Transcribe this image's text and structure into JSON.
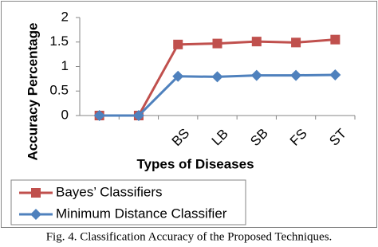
{
  "chart_data": {
    "type": "line",
    "categories": [
      null,
      null,
      "BS",
      "LB",
      "SB",
      "FS",
      "ST"
    ],
    "series": [
      {
        "name": "Bayes’ Classifiers",
        "color": "#c0504d",
        "marker": "square",
        "values": [
          0,
          0,
          1.45,
          1.47,
          1.51,
          1.49,
          1.55
        ]
      },
      {
        "name": "Minimum Distance Classifier",
        "color": "#4f81bd",
        "marker": "diamond",
        "values": [
          0,
          0,
          0.8,
          0.79,
          0.82,
          0.82,
          0.83
        ]
      }
    ],
    "ylim": [
      0,
      2
    ],
    "yticks": [
      0,
      0.5,
      1,
      1.5,
      2
    ],
    "grid": false,
    "xlabel": "Types of Diseases",
    "ylabel": "Accuracy Percentage",
    "caption": "Fig. 4. Classification Accuracy of the Proposed Techniques."
  }
}
